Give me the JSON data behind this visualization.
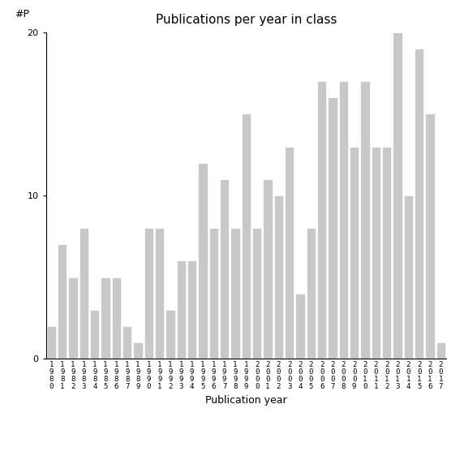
{
  "years": [
    "1980",
    "1981",
    "1982",
    "1983",
    "1984",
    "1985",
    "1986",
    "1987",
    "1989",
    "1990",
    "1991",
    "1992",
    "1993",
    "1994",
    "1995",
    "1996",
    "1997",
    "1998",
    "1999",
    "2000",
    "2001",
    "2002",
    "2003",
    "2004",
    "2005",
    "2006",
    "2007",
    "2008",
    "2009",
    "2010",
    "2011",
    "2012",
    "2013",
    "2014",
    "2015",
    "2016",
    "2017"
  ],
  "values": [
    2,
    7,
    5,
    8,
    3,
    5,
    5,
    2,
    1,
    8,
    8,
    3,
    6,
    6,
    12,
    8,
    11,
    8,
    15,
    8,
    11,
    10,
    13,
    4,
    8,
    17,
    16,
    17,
    13,
    17,
    13,
    13,
    20,
    10,
    19,
    15,
    1
  ],
  "title": "Publications per year in class",
  "xlabel": "Publication year",
  "ylabel": "#P",
  "ylim": [
    0,
    20
  ],
  "yticks": [
    0,
    10,
    20
  ],
  "bar_color": "#c8c8c8",
  "bar_edgecolor": "#ffffff",
  "bg_color": "#ffffff",
  "title_fontsize": 11,
  "axis_fontsize": 9,
  "tick_fontsize": 8
}
